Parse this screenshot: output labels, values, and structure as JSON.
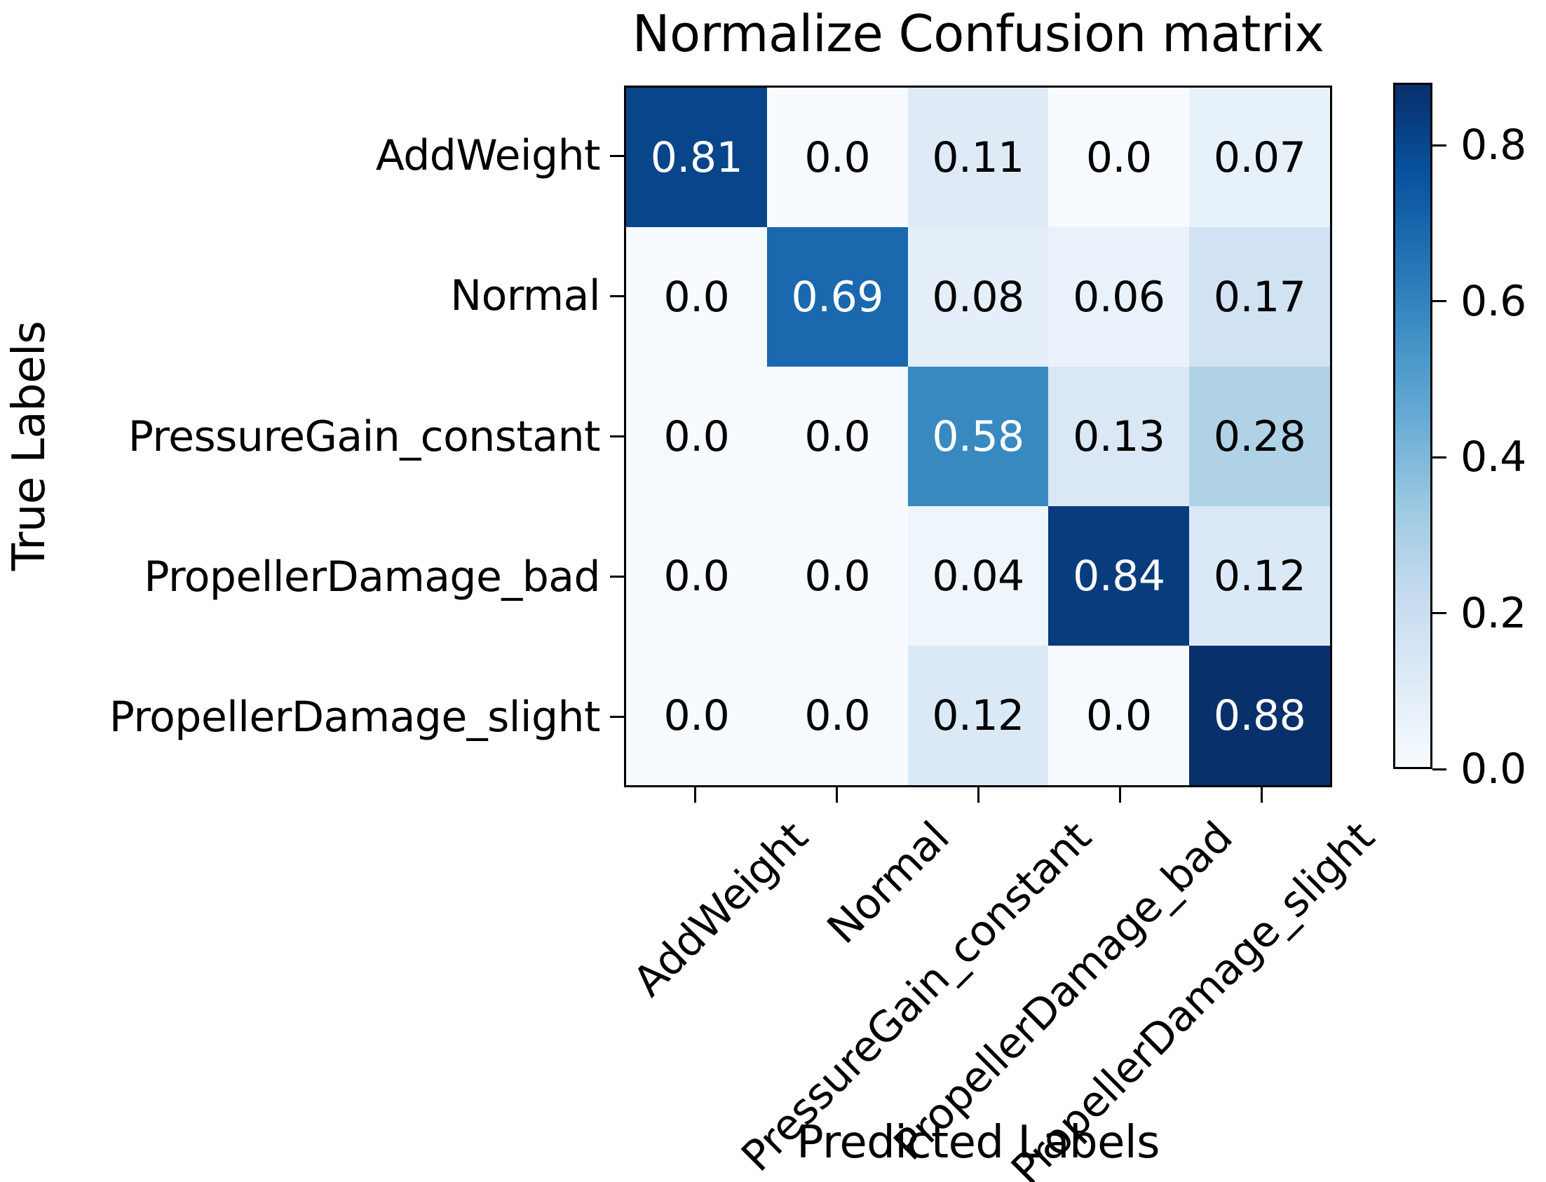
{
  "chart_data": {
    "type": "heatmap",
    "title": "Normalize Confusion matrix",
    "xlabel": "Predicted Labels",
    "ylabel": "True Labels",
    "x_categories": [
      "AddWeight",
      "Normal",
      "PressureGain_constant",
      "PropellerDamage_bad",
      "PropellerDamage_slight"
    ],
    "y_categories": [
      "AddWeight",
      "Normal",
      "PressureGain_constant",
      "PropellerDamage_bad",
      "PropellerDamage_slight"
    ],
    "matrix": [
      [
        0.81,
        0.0,
        0.11,
        0.0,
        0.07
      ],
      [
        0.0,
        0.69,
        0.08,
        0.06,
        0.17
      ],
      [
        0.0,
        0.0,
        0.58,
        0.13,
        0.28
      ],
      [
        0.0,
        0.0,
        0.04,
        0.84,
        0.12
      ],
      [
        0.0,
        0.0,
        0.12,
        0.0,
        0.88
      ]
    ],
    "cell_labels": [
      [
        "0.81",
        "0.0",
        "0.11",
        "0.0",
        "0.07"
      ],
      [
        "0.0",
        "0.69",
        "0.08",
        "0.06",
        "0.17"
      ],
      [
        "0.0",
        "0.0",
        "0.58",
        "0.13",
        "0.28"
      ],
      [
        "0.0",
        "0.0",
        "0.04",
        "0.84",
        "0.12"
      ],
      [
        "0.0",
        "0.0",
        "0.12",
        "0.0",
        "0.88"
      ]
    ],
    "cell_colors": [
      [
        "#08458a",
        "#f7fbff",
        "#deebf7",
        "#f7fbff",
        "#e7f1fa"
      ],
      [
        "#f7fbff",
        "#1a68ae",
        "#e5effa",
        "#e9f2fb",
        "#d1e2f3"
      ],
      [
        "#f7fbff",
        "#f7fbff",
        "#3989c1",
        "#dae8f5",
        "#b0d2e7"
      ],
      [
        "#f7fbff",
        "#f7fbff",
        "#eef5fc",
        "#083c7d",
        "#dbe9f6"
      ],
      [
        "#f7fbff",
        "#f7fbff",
        "#dbe9f6",
        "#f7fbff",
        "#08306b"
      ]
    ],
    "cell_text_colors": [
      [
        "#ffffff",
        "#000000",
        "#000000",
        "#000000",
        "#000000"
      ],
      [
        "#000000",
        "#ffffff",
        "#000000",
        "#000000",
        "#000000"
      ],
      [
        "#000000",
        "#000000",
        "#ffffff",
        "#000000",
        "#000000"
      ],
      [
        "#000000",
        "#000000",
        "#000000",
        "#ffffff",
        "#000000"
      ],
      [
        "#000000",
        "#000000",
        "#000000",
        "#000000",
        "#ffffff"
      ]
    ],
    "colormap": "Blues",
    "colormap_stops": [
      "#f7fbff",
      "#deebf7",
      "#c6dbef",
      "#9ecae1",
      "#6baed6",
      "#4292c6",
      "#2171b5",
      "#08519c",
      "#08306b"
    ],
    "vmin": 0.0,
    "vmax": 0.88,
    "colorbar_ticks": [
      {
        "value": 0.0,
        "label": "0.0"
      },
      {
        "value": 0.2,
        "label": "0.2"
      },
      {
        "value": 0.4,
        "label": "0.4"
      },
      {
        "value": 0.6,
        "label": "0.6"
      },
      {
        "value": 0.8,
        "label": "0.8"
      }
    ],
    "colorbar_position": "right",
    "grid": false,
    "colors": {
      "text": "#000000",
      "spine": "#000000",
      "background": "#ffffff"
    }
  }
}
